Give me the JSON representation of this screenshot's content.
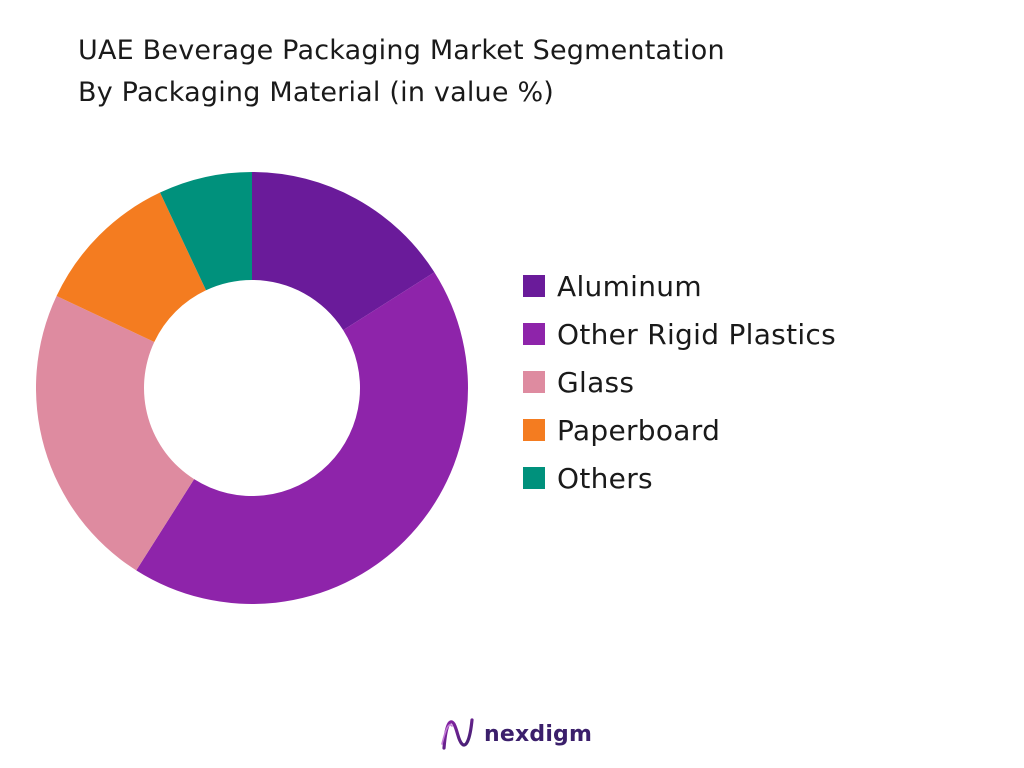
{
  "title": {
    "line1": "UAE Beverage Packaging Market Segmentation",
    "line2": "By Packaging Material (in value %)"
  },
  "chart_data": {
    "type": "pie",
    "donut": true,
    "title": "UAE Beverage Packaging Market Segmentation By Packaging Material (in value %)",
    "unit": "%",
    "legend_position": "right",
    "categories": [
      "Aluminum",
      "Other Rigid Plastics",
      "Glass",
      "Paperboard",
      "Others"
    ],
    "values": [
      16,
      43,
      23,
      11,
      7
    ],
    "colors": [
      "#6a1b9a",
      "#8e24aa",
      "#de8ba0",
      "#f47c20",
      "#00917c"
    ]
  },
  "branding": {
    "logo_text": "nexdigm",
    "logo_icon": "nexdigm-logo-icon",
    "brand_color": "#3b1f6b"
  }
}
